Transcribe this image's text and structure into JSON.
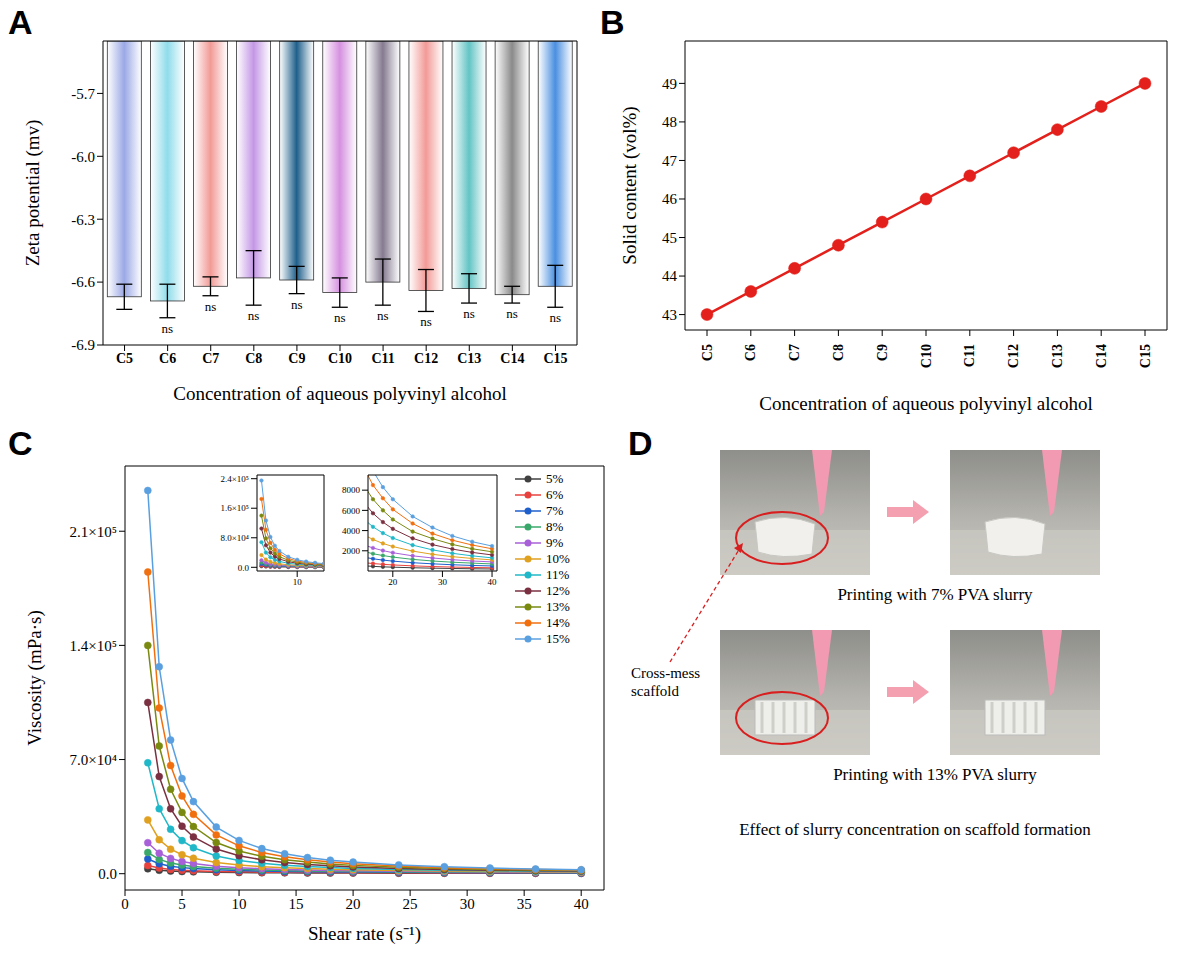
{
  "chart_data": [
    {
      "panel": "A",
      "type": "bar",
      "x_label": "Concentration of aqueous polyvinyl alcohol",
      "y_label": "Zeta potential (mv)",
      "categories": [
        "C5",
        "C6",
        "C7",
        "C8",
        "C9",
        "C10",
        "C11",
        "C12",
        "C13",
        "C14",
        "C15"
      ],
      "values": [
        -6.67,
        -6.69,
        -6.62,
        -6.58,
        -6.59,
        -6.65,
        -6.6,
        -6.64,
        -6.63,
        -6.66,
        -6.62
      ],
      "error": [
        0.06,
        0.08,
        0.045,
        0.13,
        0.065,
        0.07,
        0.11,
        0.1,
        0.07,
        0.04,
        0.1
      ],
      "significance": [
        null,
        "ns",
        "ns",
        "ns",
        "ns",
        "ns",
        "ns",
        "ns",
        "ns",
        "ns",
        "ns"
      ],
      "colors": [
        "#9aa8e6",
        "#8fdcea",
        "#f29a96",
        "#c497e6",
        "#1f5f8b",
        "#d690e0",
        "#857a90",
        "#f29a96",
        "#62c4c4",
        "#8a8a8a",
        "#4a8fe0"
      ],
      "ylim": [
        -6.9,
        -5.45
      ],
      "yticks": [
        -6.9,
        -6.6,
        -6.3,
        {
          "value": -6,
          "label": "-6.0"
        },
        -5.7
      ]
    },
    {
      "panel": "B",
      "type": "line",
      "x_label": "Concentration of aqueous polyvinyl alcohol",
      "y_label": "Solid content (vol%)",
      "categories": [
        "C5",
        "C6",
        "C7",
        "C8",
        "C9",
        "C10",
        "C11",
        "C12",
        "C13",
        "C14",
        "C15"
      ],
      "values": [
        43,
        43.6,
        44.2,
        44.8,
        45.4,
        46,
        46.6,
        47.2,
        47.8,
        48.4,
        49
      ],
      "color": "#e3201b",
      "marker": "circle",
      "ylim": [
        42.6,
        50.1
      ],
      "yticks": [
        43,
        44,
        45,
        46,
        47,
        48,
        49
      ]
    },
    {
      "panel": "C",
      "type": "line",
      "x_label": "Shear rate (s⁻¹)",
      "y_label": "Viscosity (mPa·s)",
      "marker": "circle",
      "legend": "top-right",
      "x": [
        2,
        3,
        4,
        5,
        6,
        8,
        10,
        12,
        14,
        16,
        18,
        20,
        24,
        28,
        32,
        36,
        40
      ],
      "series": [
        {
          "name": "5%",
          "color": "#404040",
          "values": [
            3000,
            2080,
            1610,
            1320,
            1120,
            860,
            710,
            600,
            520,
            460,
            410,
            380,
            320,
            280,
            250,
            220,
            200
          ]
        },
        {
          "name": "6%",
          "color": "#e8423f",
          "values": [
            5000,
            3440,
            2640,
            2150,
            1820,
            1400,
            1140,
            960,
            830,
            740,
            660,
            600,
            510,
            440,
            390,
            350,
            320
          ]
        },
        {
          "name": "7%",
          "color": "#1f5fcc",
          "values": [
            9000,
            6090,
            4610,
            3720,
            3110,
            2360,
            1900,
            1600,
            1380,
            1210,
            1080,
            980,
            820,
            710,
            620,
            550,
            500
          ]
        },
        {
          "name": "8%",
          "color": "#3aa86b",
          "values": [
            13000,
            8760,
            6610,
            5320,
            4450,
            3370,
            2710,
            2270,
            1950,
            1710,
            1530,
            1380,
            1150,
            990,
            870,
            780,
            700
          ]
        },
        {
          "name": "9%",
          "color": "#a860d8",
          "values": [
            19000,
            12570,
            9370,
            7470,
            6190,
            4620,
            3680,
            3050,
            2610,
            2280,
            2020,
            1810,
            1500,
            1290,
            1120,
            990,
            900
          ]
        },
        {
          "name": "10%",
          "color": "#e0a020",
          "values": [
            33000,
            20840,
            15020,
            11660,
            9490,
            6850,
            5320,
            4320,
            3630,
            3120,
            2730,
            2420,
            1970,
            1650,
            1420,
            1240,
            1100
          ]
        },
        {
          "name": "11%",
          "color": "#20b8c8",
          "values": [
            68000,
            39830,
            27240,
            20280,
            15930,
            10890,
            8140,
            6390,
            5200,
            4370,
            3750,
            3260,
            2560,
            2090,
            1750,
            1500,
            1300
          ]
        },
        {
          "name": "12%",
          "color": "#7a3040",
          "values": [
            105000,
            59560,
            39810,
            29120,
            22540,
            15100,
            11040,
            8530,
            6900,
            5710,
            4840,
            4170,
            3230,
            2610,
            2170,
            1840,
            1590
          ]
        },
        {
          "name": "13%",
          "color": "#7a8a10",
          "values": [
            140000,
            78300,
            51800,
            37600,
            28900,
            19100,
            13900,
            10700,
            8600,
            7100,
            6000,
            5100,
            3900,
            3200,
            2630,
            2200,
            1900
          ]
        },
        {
          "name": "14%",
          "color": "#f07010",
          "values": [
            185000,
            101600,
            66300,
            47700,
            36400,
            23800,
            17100,
            13000,
            10400,
            8500,
            7200,
            6100,
            4700,
            3700,
            3050,
            2570,
            2200
          ]
        },
        {
          "name": "15%",
          "color": "#5aa0e0",
          "values": [
            235000,
            126900,
            82000,
            58400,
            44200,
            28600,
            20400,
            15400,
            12200,
            9900,
            8300,
            7100,
            5400,
            4300,
            3470,
            2900,
            2470
          ]
        }
      ],
      "xlim": [
        0,
        42
      ],
      "xticks": [
        0,
        5,
        10,
        15,
        20,
        25,
        30,
        35,
        40
      ],
      "ylim": [
        -10000,
        250000
      ],
      "yticks": [
        {
          "value": 0,
          "label": "0.0"
        },
        {
          "value": 70000,
          "label": "7.0×10⁴"
        },
        {
          "value": 140000,
          "label": "1.4×10⁵"
        },
        {
          "value": 210000,
          "label": "2.1×10⁵"
        }
      ],
      "insets": [
        {
          "xlim": [
            1,
            16
          ],
          "xticks": [
            10
          ],
          "ylim": [
            -10000,
            250000
          ],
          "yticks": [
            {
              "value": 0,
              "label": "0.0"
            },
            {
              "value": 80000,
              "label": "8.0×10⁴"
            },
            {
              "value": 160000,
              "label": "1.6×10⁵"
            },
            {
              "value": 240000,
              "label": "2.4×10⁵"
            }
          ]
        },
        {
          "xlim": [
            15,
            41
          ],
          "xticks": [
            20,
            30,
            40
          ],
          "ylim": [
            0,
            9500
          ],
          "yticks": [
            2000,
            4000,
            6000,
            8000
          ]
        }
      ]
    }
  ],
  "photo_panel": {
    "panel": "D",
    "pointer_label": "Cross-mess scaffold",
    "photos": [
      {
        "caption": "Printing with 7% PVA slurry"
      },
      {
        "caption": "Printing with 13% PVA slurry"
      }
    ],
    "caption": "Effect of slurry concentration on scaffold formation"
  }
}
